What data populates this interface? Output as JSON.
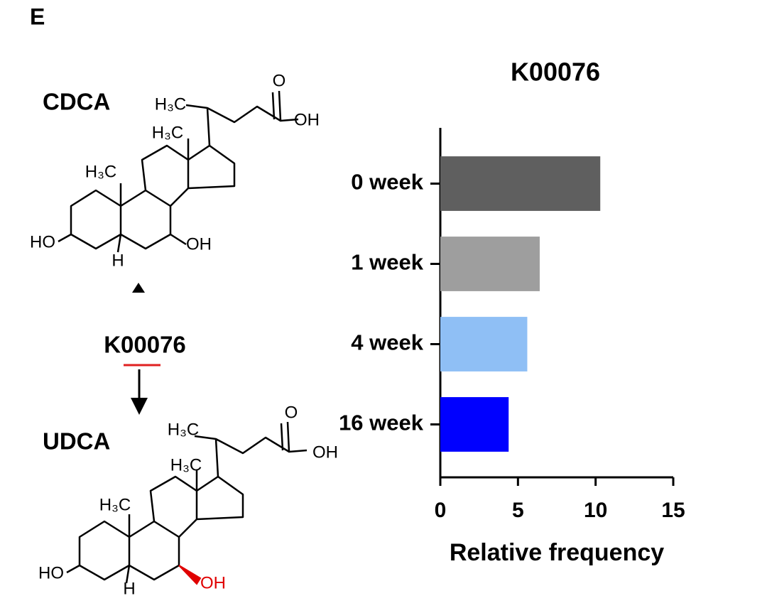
{
  "panel_label": "E",
  "diagram": {
    "enzyme": "K00076",
    "compounds": [
      {
        "name": "CDCA",
        "atoms": [
          "H₃C",
          "O",
          "OH",
          "H₃C",
          "H₃C",
          "HO",
          "H",
          "OH"
        ]
      },
      {
        "name": "UDCA",
        "atoms": [
          "H₃C",
          "O",
          "OH",
          "H₃C",
          "H₃C",
          "HO",
          "H",
          "OH"
        ]
      }
    ]
  },
  "chart_data": {
    "type": "bar",
    "orientation": "horizontal",
    "title": "K00076",
    "x_label": "Relative frequency",
    "categories": [
      "0 week",
      "1 week",
      "4 week",
      "16 week"
    ],
    "values": [
      10.3,
      6.4,
      5.6,
      4.4
    ],
    "colors": [
      "#5f5f5f",
      "#9e9e9e",
      "#8fbff5",
      "#0000ff"
    ],
    "xlim": [
      0,
      15
    ],
    "xticks": [
      0,
      5,
      10,
      15
    ],
    "grid": false
  }
}
